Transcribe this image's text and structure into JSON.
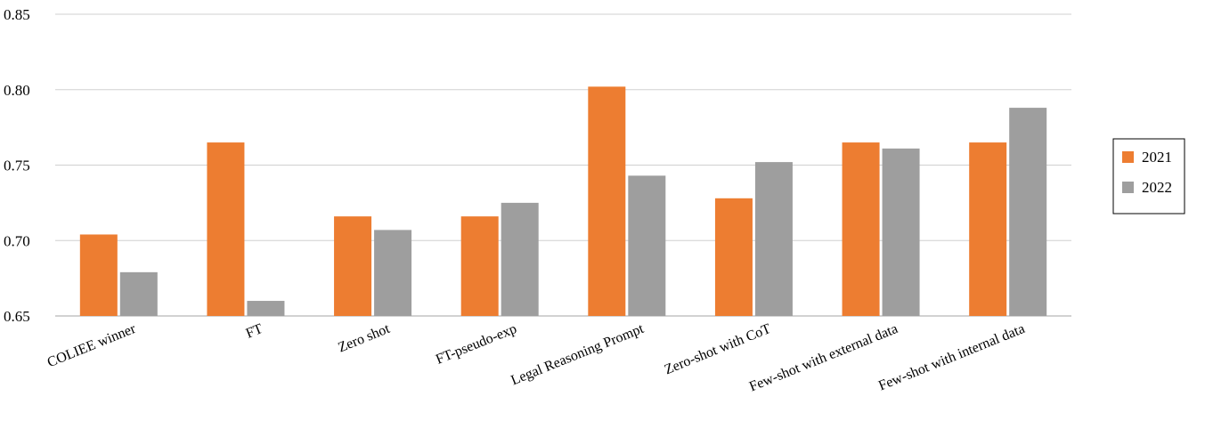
{
  "chart_data": {
    "type": "bar",
    "categories": [
      "COLIEE winner",
      "FT",
      "Zero shot",
      "FT-pseudo-exp",
      "Legal Reasoning Prompt",
      "Zero-shot with CoT",
      "Few-shot with external data",
      "Few-shot with internal data"
    ],
    "series": [
      {
        "name": "2021",
        "color": "#ED7D31",
        "values": [
          0.704,
          0.765,
          0.716,
          0.716,
          0.802,
          0.728,
          0.765,
          0.765
        ]
      },
      {
        "name": "2022",
        "color": "#9E9E9E",
        "values": [
          0.679,
          0.66,
          0.707,
          0.725,
          0.743,
          0.752,
          0.761,
          0.788
        ]
      }
    ],
    "yticks": [
      "0.65",
      "0.70",
      "0.75",
      "0.80",
      "0.85"
    ],
    "ylim": [
      0.65,
      0.85
    ],
    "grid": true,
    "legend_position": "right",
    "title": "",
    "xlabel": "",
    "ylabel": ""
  }
}
